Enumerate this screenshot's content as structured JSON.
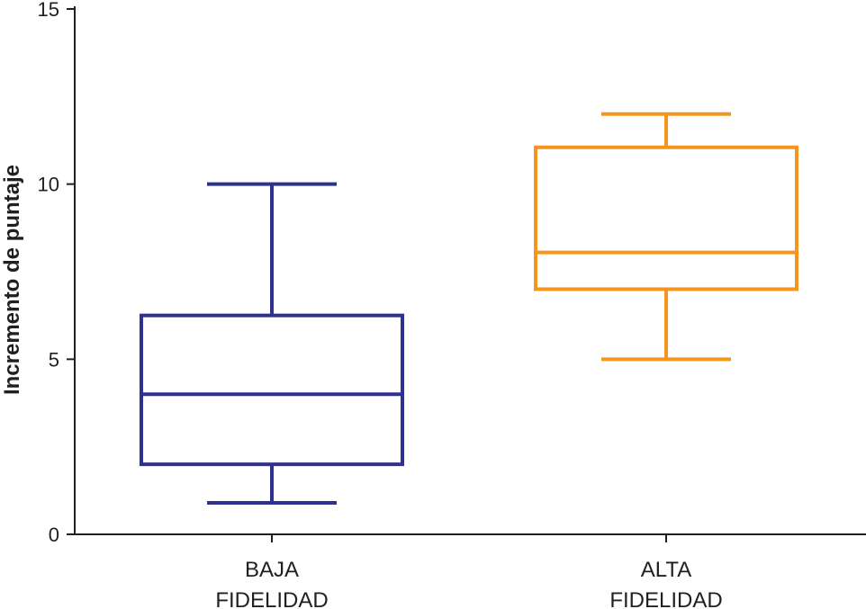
{
  "chart_data": {
    "type": "boxplot",
    "title": "",
    "ylabel": "Incremento de puntaje",
    "xlabel": "",
    "ylim": [
      0,
      15
    ],
    "yticks": [
      0,
      5,
      10,
      15
    ],
    "grid": false,
    "legend": "none",
    "categories": [
      {
        "lines": [
          "BAJA",
          "FIDELIDAD"
        ]
      },
      {
        "lines": [
          "ALTA",
          "FIDELIDAD"
        ]
      }
    ],
    "series": [
      {
        "min": 0.9,
        "q1": 2.0,
        "median": 4.0,
        "q3": 6.25,
        "max": 10.0,
        "color": "#2e3192"
      },
      {
        "min": 5.0,
        "q1": 7.0,
        "median": 8.05,
        "q3": 11.05,
        "max": 12.0,
        "color": "#f7941d"
      }
    ]
  }
}
